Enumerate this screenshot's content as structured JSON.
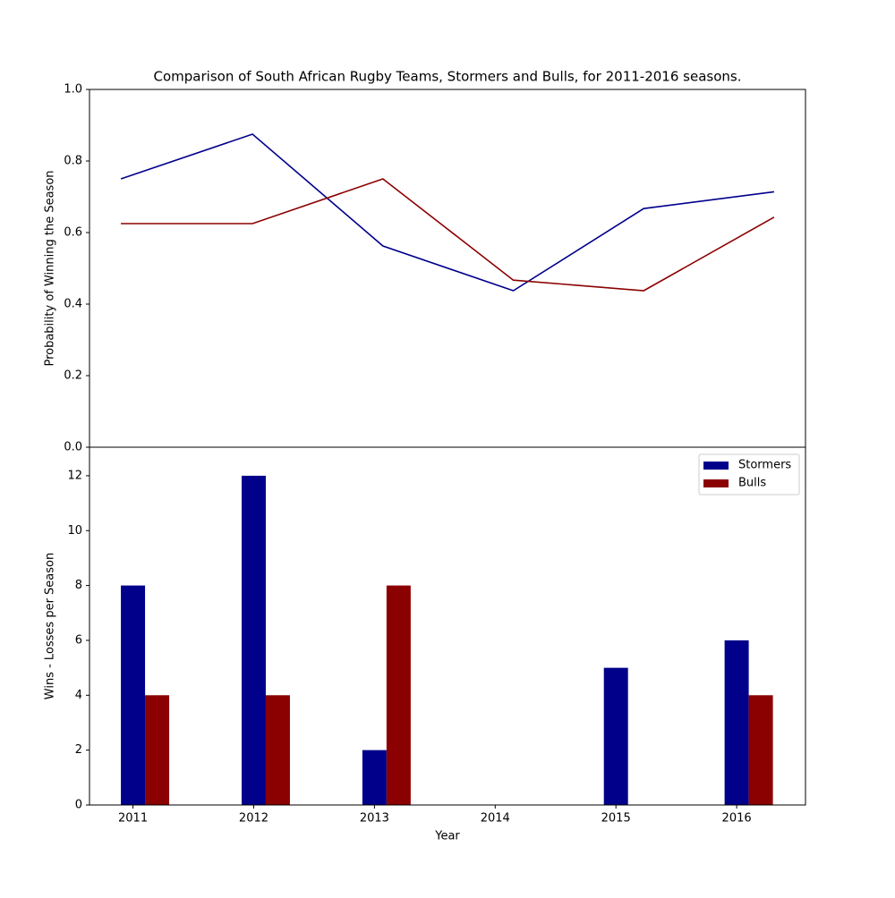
{
  "chart_data": [
    {
      "type": "line",
      "title": "Comparison of South African Rugby Teams, Stormers and Bulls, for 2011-2016 seasons.",
      "y_label": "Probability of Winning the Season",
      "x": [
        2010.9,
        2011.99,
        2013.07,
        2014.15,
        2015.23,
        2016.31
      ],
      "series": [
        {
          "name": "Stormers",
          "color": "#00008b",
          "values": [
            0.75,
            0.875,
            0.5625,
            0.4375,
            0.667,
            0.714
          ]
        },
        {
          "name": "Bulls",
          "color": "#8b0000",
          "values": [
            0.625,
            0.625,
            0.75,
            0.467,
            0.4375,
            0.643
          ]
        }
      ],
      "xlim": [
        2010.64,
        2016.57
      ],
      "ylim": [
        0,
        1
      ],
      "yticks": [
        {
          "value": 0,
          "label": "0.0"
        },
        0.2,
        0.4,
        0.6,
        0.8,
        {
          "value": 1,
          "label": "1.0"
        }
      ]
    },
    {
      "type": "bar",
      "x_label": "Year",
      "y_label": "Wins - Losses per Season",
      "x": [
        2011,
        2012,
        2013,
        2014,
        2015,
        2016
      ],
      "series": [
        {
          "name": "Stormers",
          "color": "#00008b",
          "values": [
            8,
            12,
            2,
            0,
            5,
            6
          ]
        },
        {
          "name": "Bulls",
          "color": "#8b0000",
          "values": [
            4,
            4,
            8,
            0,
            0,
            4
          ]
        }
      ],
      "xlim": [
        2010.64,
        2016.57
      ],
      "xticks": [
        2011,
        2012,
        2013,
        2014,
        2015,
        2016
      ],
      "ylim": [
        0,
        13.04
      ],
      "yticks": [
        0,
        2,
        4,
        6,
        8,
        10,
        12
      ],
      "legend": "upper right"
    }
  ]
}
